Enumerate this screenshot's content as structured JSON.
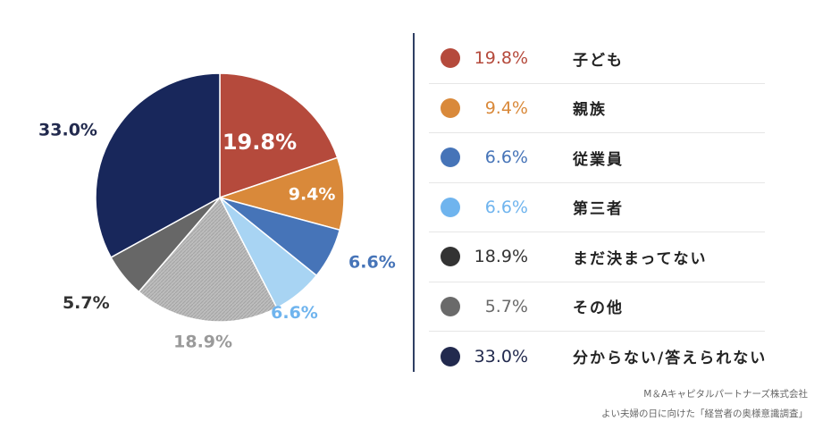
{
  "chart_data": {
    "type": "pie",
    "slices": [
      {
        "label": "子ども",
        "value": 19.8,
        "display": "19.8%",
        "color": "#b54a3c"
      },
      {
        "label": "親族",
        "value": 9.4,
        "display": "9.4%",
        "color": "#d9893a"
      },
      {
        "label": "従業員",
        "value": 6.6,
        "display": "6.6%",
        "color": "#4674b8"
      },
      {
        "label": "第三者",
        "value": 6.6,
        "display": "6.6%",
        "color": "#a8d4f3"
      },
      {
        "label": "まだ決まってない",
        "value": 18.9,
        "display": "18.9%",
        "color": "#b8b8b8"
      },
      {
        "label": "その他",
        "value": 5.7,
        "display": "5.7%",
        "color": "#676767"
      },
      {
        "label": "分からない/答えられない",
        "value": 33.0,
        "display": "33.0%",
        "color": "#18275b"
      }
    ],
    "legend_placement": "right"
  },
  "legend": [
    {
      "name": "子ども",
      "pct": "19.8%",
      "dot_color": "#b54a3c",
      "text_color": "#b54a3c"
    },
    {
      "name": "親族",
      "pct": "9.4%",
      "dot_color": "#d9893a",
      "text_color": "#d9893a"
    },
    {
      "name": "従業員",
      "pct": "6.6%",
      "dot_color": "#4674b8",
      "text_color": "#4674b8"
    },
    {
      "name": "第三者",
      "pct": "6.6%",
      "dot_color": "#6fb4ee",
      "text_color": "#6fb4ee"
    },
    {
      "name": "まだ決まってない",
      "pct": "18.9%",
      "dot_color": "#333333",
      "text_color": "#333333"
    },
    {
      "name": "その他",
      "pct": "5.7%",
      "dot_color": "#6a6a6a",
      "text_color": "#6a6a6a"
    },
    {
      "name": "分からない/答えられない",
      "pct": "33.0%",
      "dot_color": "#222a4e",
      "text_color": "#222a4e"
    }
  ],
  "source": {
    "line1": "M＆Aキャピタルパートナーズ株式会社",
    "line2": "よい夫婦の日に向けた「経営者の奥様意識調査」"
  }
}
